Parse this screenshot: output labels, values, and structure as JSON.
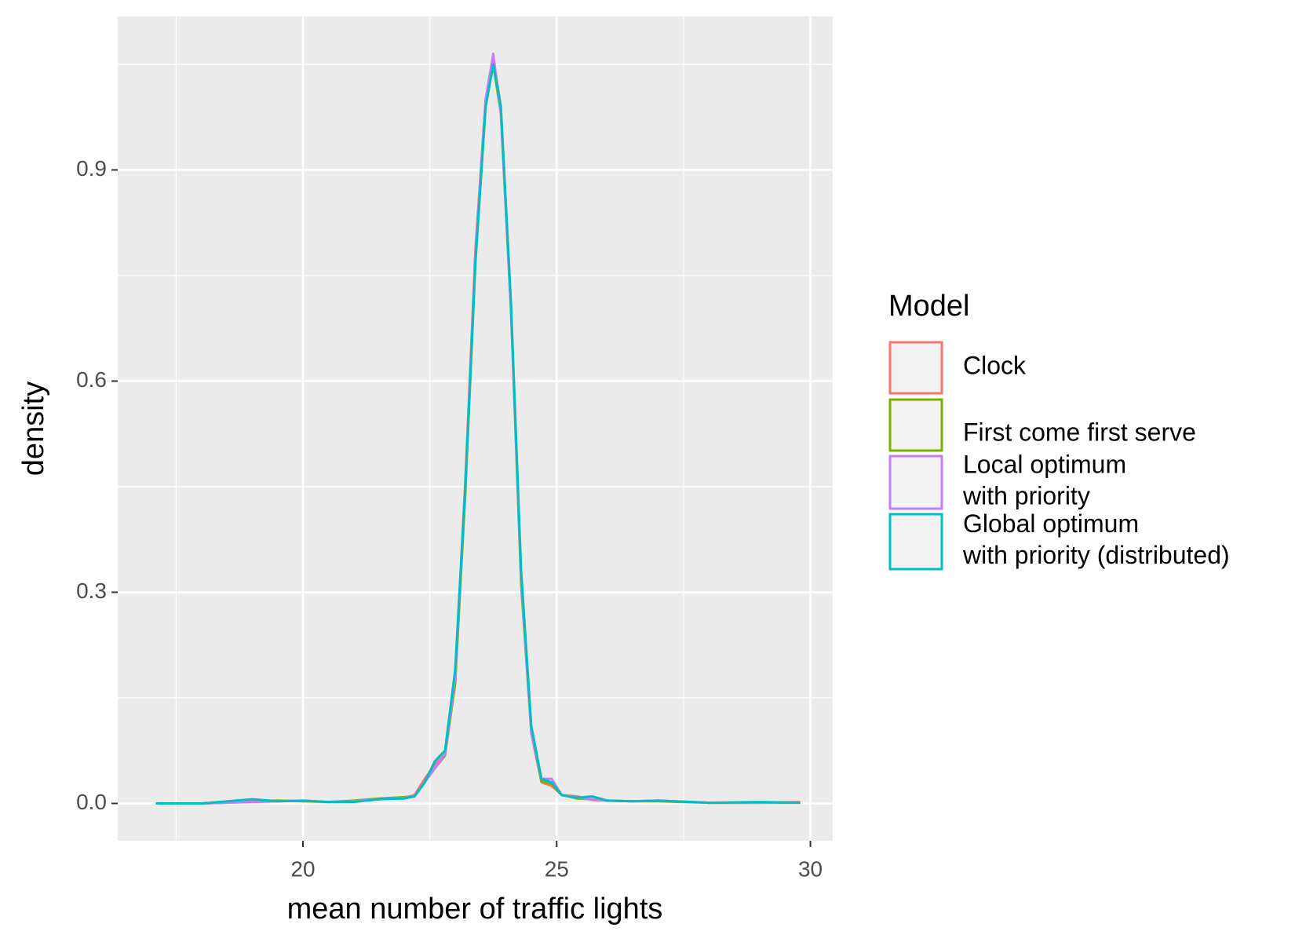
{
  "chart_data": {
    "type": "line",
    "xlabel": "mean number of traffic lights",
    "ylabel": "density",
    "legend_title": "Model",
    "xlim": [
      16.35,
      30.44
    ],
    "ylim": [
      -0.053,
      1.118
    ],
    "xticks": [
      20,
      25,
      30
    ],
    "yticks": [
      {
        "value": 0,
        "label": "0.0"
      },
      0.3,
      0.6,
      0.9
    ],
    "grid": true,
    "legend": "right",
    "x": [
      17.1,
      18,
      19,
      19.5,
      20,
      20.5,
      21,
      21.5,
      22,
      22.2,
      22.4,
      22.6,
      22.8,
      23.0,
      23.2,
      23.4,
      23.6,
      23.75,
      23.9,
      24.1,
      24.3,
      24.5,
      24.7,
      24.9,
      25.1,
      25.4,
      25.7,
      26,
      26.5,
      27,
      28,
      29,
      29.8
    ],
    "series": [
      {
        "name": "Clock",
        "color": "#f8766d",
        "values": [
          0,
          0,
          0.002,
          0.003,
          0.004,
          0.002,
          0.003,
          0.006,
          0.008,
          0.012,
          0.035,
          0.055,
          0.07,
          0.18,
          0.46,
          0.79,
          1.0,
          1.06,
          0.99,
          0.71,
          0.32,
          0.1,
          0.03,
          0.025,
          0.012,
          0.01,
          0.005,
          0.004,
          0.003,
          0.004,
          0.001,
          0.001,
          0.002
        ]
      },
      {
        "name": "First come first serve",
        "color": "#7cae00",
        "values": [
          0,
          0,
          0.003,
          0.004,
          0.003,
          0.002,
          0.004,
          0.007,
          0.009,
          0.01,
          0.03,
          0.05,
          0.068,
          0.17,
          0.44,
          0.77,
          0.99,
          1.05,
          0.98,
          0.7,
          0.31,
          0.1,
          0.032,
          0.028,
          0.012,
          0.007,
          0.006,
          0.004,
          0.003,
          0.003,
          0.001,
          0.001,
          0.001
        ]
      },
      {
        "name": "Local optimum\nwith priority",
        "color": "#c77cff",
        "values": [
          0,
          0,
          0.002,
          0.003,
          0.004,
          0.002,
          0.003,
          0.006,
          0.008,
          0.01,
          0.03,
          0.05,
          0.07,
          0.18,
          0.45,
          0.78,
          1.0,
          1.065,
          0.98,
          0.7,
          0.32,
          0.1,
          0.035,
          0.035,
          0.012,
          0.008,
          0.006,
          0.004,
          0.003,
          0.004,
          0.001,
          0.001,
          0.001
        ]
      },
      {
        "name": "Global optimum\nwith priority (distributed)",
        "color": "#00bfc4",
        "values": [
          0,
          0,
          0.006,
          0.003,
          0.004,
          0.002,
          0.002,
          0.006,
          0.007,
          0.01,
          0.03,
          0.06,
          0.075,
          0.19,
          0.45,
          0.77,
          0.99,
          1.05,
          0.99,
          0.71,
          0.33,
          0.11,
          0.035,
          0.03,
          0.012,
          0.008,
          0.01,
          0.004,
          0.003,
          0.004,
          0.001,
          0.002,
          0.001
        ]
      }
    ]
  }
}
